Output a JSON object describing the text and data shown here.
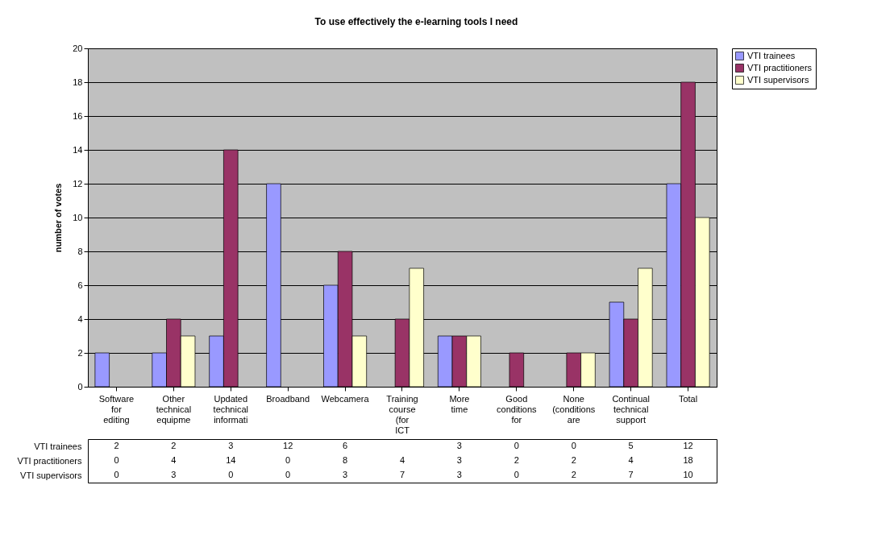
{
  "chart_data": {
    "type": "bar",
    "title": "To use effectively the e-learning tools I need",
    "ylabel": "number of votes",
    "categories": [
      "Software for editing",
      "Other technical equipme",
      "Updated technical informati",
      "Broadband",
      "Webcamera",
      "Training course (for ICT",
      "More time",
      "Good conditions for",
      "None (conditions are",
      "Continual technical support",
      "Total"
    ],
    "series": [
      {
        "name": "VTI trainees",
        "color": "#9999ff",
        "values": [
          2,
          2,
          3,
          12,
          6,
          null,
          3,
          0,
          0,
          5,
          12
        ]
      },
      {
        "name": "VTI practitioners",
        "color": "#993366",
        "values": [
          0,
          4,
          14,
          0,
          8,
          4,
          3,
          2,
          2,
          4,
          18
        ]
      },
      {
        "name": "VTI supervisors",
        "color": "#ffffcc",
        "values": [
          0,
          3,
          0,
          0,
          3,
          7,
          3,
          0,
          2,
          7,
          10
        ]
      }
    ],
    "ylim": [
      0,
      20
    ],
    "yticks": [
      0,
      2,
      4,
      6,
      8,
      10,
      12,
      14,
      16,
      18,
      20
    ],
    "grid": "y",
    "legend": "right",
    "data_labels": true
  }
}
